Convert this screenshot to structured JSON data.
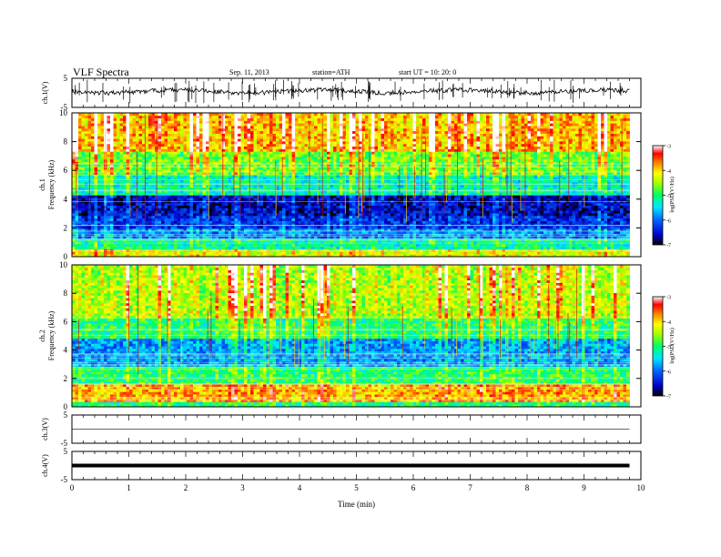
{
  "header": {
    "title": "VLF  Spectra",
    "date": "Sep. 11, 2013",
    "station": "station=ATH",
    "start": "start  UT  =    10: 20: 0"
  },
  "chart_data": [
    {
      "type": "line",
      "name": "ch1-waveform",
      "ylabel": "ch.1(V)",
      "ylim": [
        -5,
        5
      ],
      "ytick_labels": [
        "5",
        "-5"
      ],
      "xlim": [
        0,
        10
      ],
      "baseline_v": 0.5
    },
    {
      "type": "heatmap",
      "name": "ch1-spectrogram",
      "ylabel_lines": [
        "ch.1",
        "Frequency  (kHz)"
      ],
      "ylim": [
        0,
        10
      ],
      "yticks": [
        0,
        2,
        4,
        6,
        8,
        10
      ],
      "xlim": [
        0,
        10
      ],
      "data_end_min": 9.8,
      "color_scale": {
        "label": "log(PSD(V²/Hz)",
        "ticks": [
          -3,
          -4,
          -5,
          -6,
          -7
        ],
        "range": [
          -7,
          -3
        ]
      },
      "bands_khz": [
        {
          "from": 0,
          "to": 0.6,
          "level": -4.3
        },
        {
          "from": 0.6,
          "to": 1.3,
          "level": -5.2
        },
        {
          "from": 1.3,
          "to": 2.0,
          "level": -5.9
        },
        {
          "from": 2.0,
          "to": 2.8,
          "level": -6.3
        },
        {
          "from": 2.8,
          "to": 4.3,
          "level": -6.6
        },
        {
          "from": 4.3,
          "to": 5.8,
          "level": -5.3
        },
        {
          "from": 5.8,
          "to": 7.3,
          "level": -4.7
        },
        {
          "from": 7.3,
          "to": 10,
          "level": -3.9
        }
      ]
    },
    {
      "type": "heatmap",
      "name": "ch2-spectrogram",
      "ylabel_lines": [
        "ch.2",
        "Frequency  (kHz)"
      ],
      "ylim": [
        0,
        10
      ],
      "yticks": [
        0,
        2,
        4,
        6,
        8,
        10
      ],
      "xlim": [
        0,
        10
      ],
      "data_end_min": 9.8,
      "color_scale": {
        "label": "log(PSD(V²/Hz)",
        "ticks": [
          -3,
          -4,
          -5,
          -6,
          -7
        ],
        "range": [
          -7,
          -3
        ]
      },
      "bands_khz": [
        {
          "from": 0,
          "to": 0.4,
          "level": -5.1
        },
        {
          "from": 0.4,
          "to": 1.6,
          "level": -3.9
        },
        {
          "from": 1.6,
          "to": 2.8,
          "level": -5.0
        },
        {
          "from": 2.8,
          "to": 4.8,
          "level": -5.8
        },
        {
          "from": 4.8,
          "to": 6.3,
          "level": -5.0
        },
        {
          "from": 6.3,
          "to": 10,
          "level": -4.4
        }
      ]
    },
    {
      "type": "line",
      "name": "ch3-waveform",
      "ylabel": "ch.3(V)",
      "ylim": [
        -5,
        5
      ],
      "ytick_labels": [
        "5",
        "-5"
      ],
      "xlim": [
        0,
        10
      ],
      "baseline_v": 0
    },
    {
      "type": "line",
      "name": "ch4-waveform",
      "ylabel": "ch.4(V)",
      "ylim": [
        -5,
        5
      ],
      "ytick_labels": [
        "5",
        "-5"
      ],
      "xlim": [
        0,
        10
      ],
      "baseline_v": 0
    }
  ],
  "x_axis": {
    "label": "Time  (min)",
    "ticks": [
      0,
      1,
      2,
      3,
      4,
      5,
      6,
      7,
      8,
      9,
      10
    ]
  },
  "colors": {
    "axis": "#000000",
    "colormap": [
      "#000000",
      "#0000c8",
      "#0064ff",
      "#00e6ff",
      "#00ff64",
      "#a0ff00",
      "#ffff00",
      "#ff8c00",
      "#ff0000",
      "#ffffff"
    ]
  }
}
